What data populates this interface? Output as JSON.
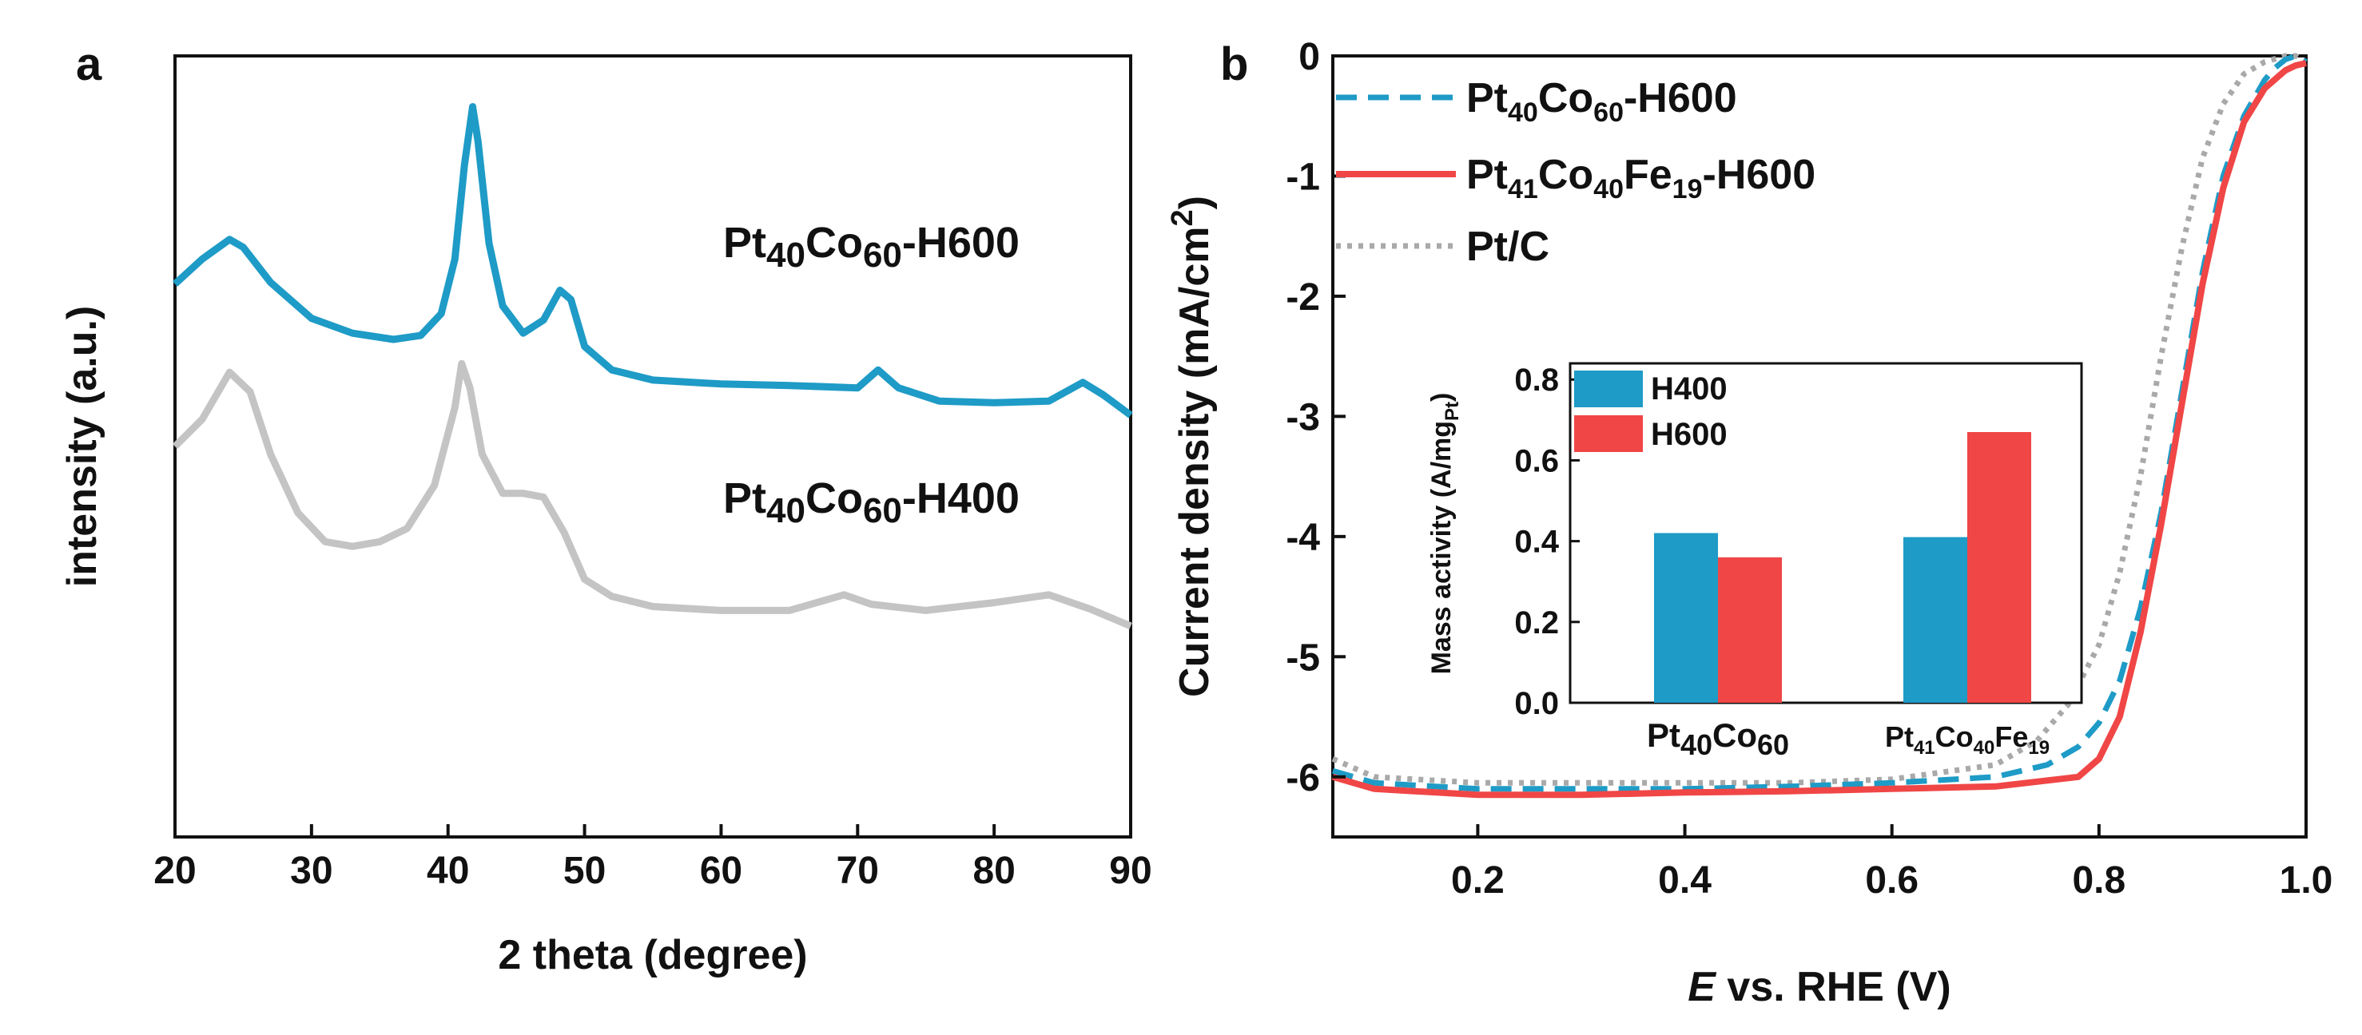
{
  "colors": {
    "blue": "#1E9BC6",
    "gray": "#C4C4C4",
    "red": "#F04646",
    "dotted_gray": "#A9A9A9",
    "axis": "#111111"
  },
  "chart_data": [
    {
      "type": "line",
      "panel_label": "a",
      "title": "",
      "xlabel": "2 theta (degree)",
      "ylabel": "intensity (a.u.)",
      "xlim": [
        20,
        90
      ],
      "ylim": [
        0,
        1
      ],
      "xticks": [
        "20",
        "30",
        "40",
        "50",
        "60",
        "70",
        "80",
        "90"
      ],
      "series": [
        {
          "name": "Pt40Co60-H600",
          "label_main_1": "Pt",
          "label_sub_1": "40",
          "label_main_2": "Co",
          "label_sub_2": "60",
          "label_suffix": "-H600",
          "x": [
            20,
            22,
            24,
            25,
            27,
            30,
            33,
            36,
            38,
            39.5,
            40.5,
            41.2,
            41.8,
            42.2,
            43,
            44,
            45.5,
            47,
            48.2,
            49,
            50,
            52,
            55,
            60,
            65,
            70,
            71.5,
            73,
            76,
            80,
            84,
            86.5,
            88,
            90
          ],
          "y": [
            0.708,
            0.74,
            0.765,
            0.755,
            0.71,
            0.664,
            0.645,
            0.637,
            0.642,
            0.67,
            0.74,
            0.86,
            0.935,
            0.89,
            0.76,
            0.68,
            0.645,
            0.662,
            0.7,
            0.688,
            0.628,
            0.598,
            0.585,
            0.58,
            0.578,
            0.575,
            0.598,
            0.575,
            0.558,
            0.556,
            0.558,
            0.582,
            0.566,
            0.54
          ]
        },
        {
          "name": "Pt40Co60-H400",
          "label_main_1": "Pt",
          "label_sub_1": "40",
          "label_main_2": "Co",
          "label_sub_2": "60",
          "label_suffix": "-H400",
          "x": [
            20,
            22,
            24,
            25.5,
            27,
            29,
            31,
            33,
            35,
            37,
            39,
            40.5,
            41,
            41.6,
            42.5,
            44,
            45.5,
            47,
            48.5,
            50,
            52,
            55,
            60,
            65,
            69,
            71,
            75,
            80,
            84,
            87,
            90
          ],
          "y": [
            0.5,
            0.535,
            0.595,
            0.57,
            0.49,
            0.415,
            0.378,
            0.372,
            0.378,
            0.395,
            0.45,
            0.55,
            0.606,
            0.575,
            0.49,
            0.44,
            0.44,
            0.435,
            0.39,
            0.33,
            0.308,
            0.295,
            0.29,
            0.29,
            0.31,
            0.298,
            0.29,
            0.3,
            0.31,
            0.292,
            0.27
          ]
        }
      ]
    },
    {
      "type": "line",
      "panel_label": "b",
      "title": "",
      "xlabel_italic": "E",
      "xlabel_rest": " vs. RHE (V)",
      "ylabel_main": "Current density (mA/cm",
      "ylabel_sup": "2",
      "ylabel_close": ")",
      "xlim": [
        0.06,
        1.0
      ],
      "ylim": [
        -6.5,
        0
      ],
      "xticks": [
        "0.2",
        "0.4",
        "0.6",
        "0.8",
        "1.0"
      ],
      "yticks": [
        "0",
        "-1",
        "-2",
        "-3",
        "-4",
        "-5",
        "-6"
      ],
      "legend_position": "top-left",
      "series": [
        {
          "name": "Pt40Co60-H600",
          "style": "dashed",
          "label_main_1": "Pt",
          "label_sub_1": "40",
          "label_main_2": "Co",
          "label_sub_2": "60",
          "label_suffix": "-H600",
          "x": [
            0.06,
            0.1,
            0.2,
            0.3,
            0.4,
            0.5,
            0.6,
            0.7,
            0.75,
            0.78,
            0.8,
            0.82,
            0.84,
            0.86,
            0.88,
            0.9,
            0.92,
            0.94,
            0.96,
            0.97,
            0.98,
            0.99,
            1.0
          ],
          "y": [
            -5.95,
            -6.05,
            -6.1,
            -6.1,
            -6.1,
            -6.08,
            -6.05,
            -6.0,
            -5.9,
            -5.75,
            -5.55,
            -5.2,
            -4.6,
            -3.8,
            -2.8,
            -1.8,
            -1.0,
            -0.5,
            -0.2,
            -0.1,
            -0.03,
            0.0,
            -0.05
          ]
        },
        {
          "name": "Pt41Co40Fe19-H600",
          "style": "solid",
          "label_main_1": "Pt",
          "label_sub_1": "41",
          "label_main_2": "Co",
          "label_sub_2": "40",
          "label_main_3": "Fe",
          "label_sub_3": "19",
          "label_suffix": "-H600",
          "x": [
            0.06,
            0.1,
            0.2,
            0.3,
            0.4,
            0.5,
            0.6,
            0.7,
            0.78,
            0.8,
            0.82,
            0.84,
            0.86,
            0.88,
            0.9,
            0.92,
            0.94,
            0.96,
            0.98,
            0.99,
            1.0
          ],
          "y": [
            -6.0,
            -6.1,
            -6.15,
            -6.15,
            -6.13,
            -6.12,
            -6.1,
            -6.08,
            -6.0,
            -5.85,
            -5.5,
            -4.8,
            -3.9,
            -2.9,
            -1.9,
            -1.1,
            -0.55,
            -0.27,
            -0.12,
            -0.08,
            -0.06
          ]
        },
        {
          "name": "Pt/C",
          "style": "dotted",
          "label_main_1": "Pt/C",
          "x": [
            0.06,
            0.1,
            0.2,
            0.3,
            0.4,
            0.5,
            0.6,
            0.7,
            0.74,
            0.77,
            0.8,
            0.82,
            0.84,
            0.86,
            0.88,
            0.9,
            0.92,
            0.94,
            0.96,
            0.98,
            0.99,
            1.0
          ],
          "y": [
            -5.85,
            -6.0,
            -6.05,
            -6.05,
            -6.05,
            -6.05,
            -6.02,
            -5.9,
            -5.7,
            -5.4,
            -4.9,
            -4.3,
            -3.5,
            -2.5,
            -1.6,
            -0.85,
            -0.4,
            -0.15,
            -0.05,
            0.0,
            0.0,
            -0.05
          ]
        }
      ]
    },
    {
      "type": "bar",
      "inset_of": "b",
      "ylabel_main": "Mass activity (A/mg",
      "ylabel_sub": "Pt",
      "ylabel_close": ")",
      "ylim": [
        0,
        0.84
      ],
      "yticks": [
        "0.0",
        "0.2",
        "0.4",
        "0.6",
        "0.8"
      ],
      "categories": [
        {
          "name": "Pt40Co60",
          "m1": "Pt",
          "s1": "40",
          "m2": "Co",
          "s2": "60"
        },
        {
          "name": "Pt41Co40Fe19",
          "m1": "Pt",
          "s1": "41",
          "m2": "Co",
          "s2": "40",
          "m3": "Fe",
          "s3": "19"
        }
      ],
      "series": [
        {
          "name": "H400",
          "values": [
            0.42,
            0.41
          ]
        },
        {
          "name": "H600",
          "values": [
            0.36,
            0.67
          ]
        }
      ],
      "legend_position": "top-left"
    }
  ]
}
